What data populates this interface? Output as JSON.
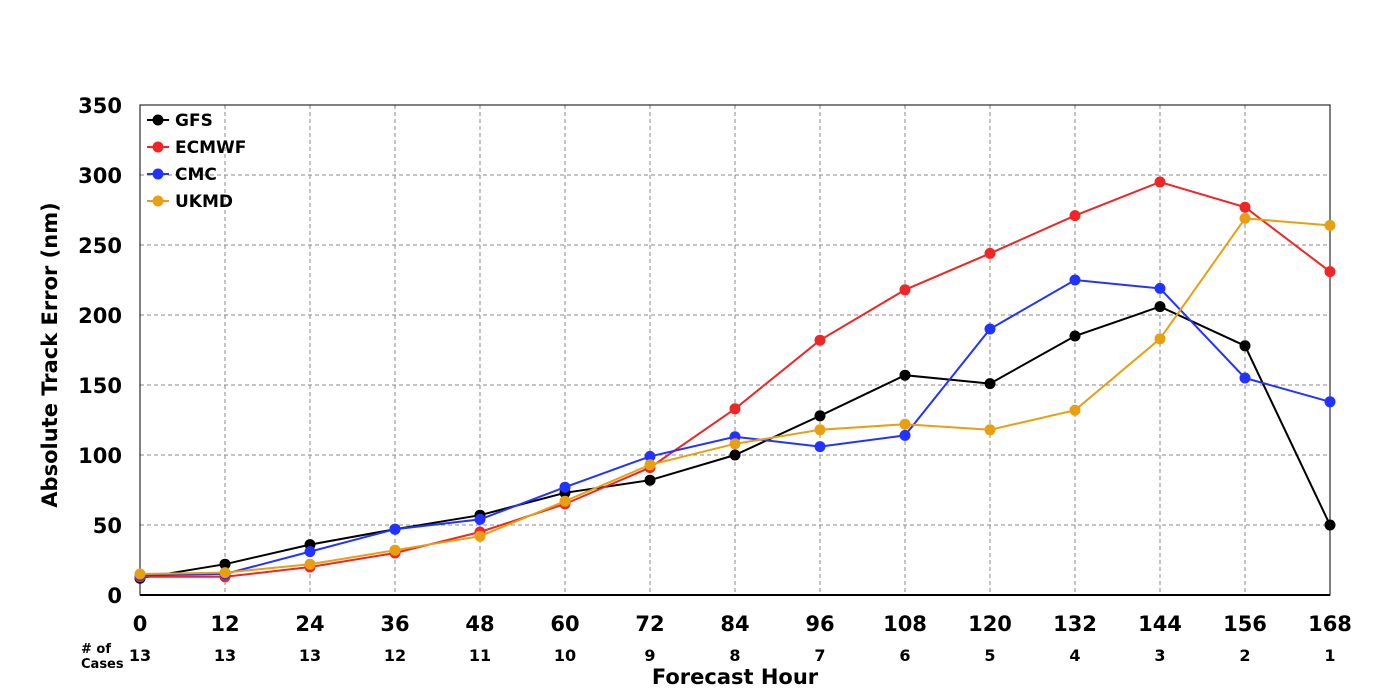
{
  "chart_data": {
    "type": "line",
    "ylabel": "Absolute Track Error (nm)",
    "xlabel": "Forecast Hour",
    "ylim": [
      0,
      350
    ],
    "xlim": [
      0,
      168
    ],
    "y_ticks": [
      0,
      50,
      100,
      150,
      200,
      250,
      300,
      350
    ],
    "x": [
      0,
      12,
      24,
      36,
      48,
      60,
      72,
      84,
      96,
      108,
      120,
      132,
      144,
      156,
      168
    ],
    "cases_label": "# of Cases",
    "cases_label_lines": [
      "# of",
      "Cases"
    ],
    "cases": [
      13,
      13,
      13,
      12,
      11,
      10,
      9,
      8,
      7,
      6,
      5,
      4,
      3,
      2,
      1
    ],
    "grid": true,
    "legend_position": "top-left",
    "series": [
      {
        "name": "GFS",
        "color": "#000000",
        "values": [
          12,
          22,
          36,
          47,
          57,
          73,
          82,
          100,
          128,
          157,
          151,
          185,
          206,
          178,
          50
        ]
      },
      {
        "name": "ECMWF",
        "color": "#f02525",
        "values": [
          13,
          13,
          20,
          30,
          45,
          65,
          91,
          133,
          182,
          218,
          244,
          271,
          295,
          277,
          231
        ]
      },
      {
        "name": "CMC",
        "color": "#2233ff",
        "values": [
          14,
          15,
          31,
          47,
          54,
          77,
          99,
          113,
          106,
          114,
          190,
          225,
          219,
          155,
          138
        ]
      },
      {
        "name": "UKMD",
        "color": "#e8a010",
        "values": [
          15,
          16,
          22,
          32,
          42,
          67,
          93,
          108,
          118,
          122,
          118,
          132,
          183,
          269,
          264
        ]
      }
    ]
  }
}
